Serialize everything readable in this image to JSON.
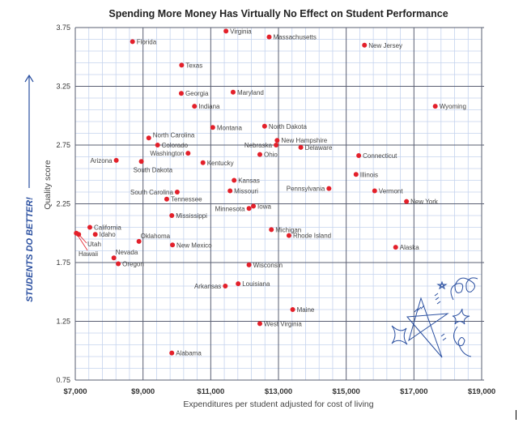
{
  "chart_data": {
    "type": "scatter",
    "title": "Spending More Money Has Virtually No Effect on Student Performance",
    "xlabel": "Expenditures per student adjusted for cost of living",
    "ylabel": "Quality score",
    "side_label": "STUDENTS DO BETTER!",
    "xlim": [
      7000,
      19000
    ],
    "ylim": [
      0.75,
      3.75
    ],
    "x_ticks": [
      7000,
      9000,
      11000,
      13000,
      15000,
      17000,
      19000
    ],
    "x_tick_labels": [
      "$7,000",
      "$9,000",
      "$11,000",
      "$13,000",
      "$15,000",
      "$17,000",
      "$19,000"
    ],
    "y_ticks": [
      0.75,
      1.25,
      1.75,
      2.25,
      2.75,
      3.25,
      3.75
    ],
    "y_tick_labels": [
      "0.75",
      "1.25",
      "1.75",
      "2.25",
      "2.75",
      "3.25",
      "3.75"
    ],
    "grid": true,
    "colors": {
      "point": "#e3202a",
      "grid_major": "#5a5f72",
      "grid_minor": "#c5d3ee",
      "accent": "#2a4fa0"
    },
    "points": [
      {
        "name": "Virginia",
        "x": 11450,
        "y": 3.72
      },
      {
        "name": "Massachusetts",
        "x": 12725,
        "y": 3.67
      },
      {
        "name": "Florida",
        "x": 8690,
        "y": 3.63
      },
      {
        "name": "New Jersey",
        "x": 15540,
        "y": 3.6
      },
      {
        "name": "Texas",
        "x": 10140,
        "y": 3.43
      },
      {
        "name": "Maryland",
        "x": 11660,
        "y": 3.2
      },
      {
        "name": "Georgia",
        "x": 10130,
        "y": 3.19
      },
      {
        "name": "Indiana",
        "x": 10520,
        "y": 3.08
      },
      {
        "name": "Wyoming",
        "x": 17630,
        "y": 3.08
      },
      {
        "name": "North Dakota",
        "x": 12590,
        "y": 2.91
      },
      {
        "name": "Montana",
        "x": 11060,
        "y": 2.9
      },
      {
        "name": "North Carolina",
        "x": 9170,
        "y": 2.81
      },
      {
        "name": "New Hampshire",
        "x": 12960,
        "y": 2.79
      },
      {
        "name": "Colorado",
        "x": 9430,
        "y": 2.75
      },
      {
        "name": "Nebraska",
        "x": 12930,
        "y": 2.75
      },
      {
        "name": "Delaware",
        "x": 13660,
        "y": 2.73
      },
      {
        "name": "Washington",
        "x": 10330,
        "y": 2.68
      },
      {
        "name": "Ohio",
        "x": 12450,
        "y": 2.67
      },
      {
        "name": "Connecticut",
        "x": 15370,
        "y": 2.66
      },
      {
        "name": "Arizona",
        "x": 8210,
        "y": 2.62
      },
      {
        "name": "South Dakota",
        "x": 8950,
        "y": 2.61
      },
      {
        "name": "Kentucky",
        "x": 10770,
        "y": 2.6
      },
      {
        "name": "Illinois",
        "x": 15290,
        "y": 2.5
      },
      {
        "name": "Kansas",
        "x": 11690,
        "y": 2.45
      },
      {
        "name": "Pennsylvania",
        "x": 14490,
        "y": 2.38
      },
      {
        "name": "Missouri",
        "x": 11570,
        "y": 2.36
      },
      {
        "name": "Vermont",
        "x": 15840,
        "y": 2.36
      },
      {
        "name": "South Carolina",
        "x": 10010,
        "y": 2.35
      },
      {
        "name": "Tennessee",
        "x": 9700,
        "y": 2.29
      },
      {
        "name": "New York",
        "x": 16780,
        "y": 2.27
      },
      {
        "name": "Iowa",
        "x": 12260,
        "y": 2.23
      },
      {
        "name": "Minnesota",
        "x": 12130,
        "y": 2.21
      },
      {
        "name": "Mississippi",
        "x": 9850,
        "y": 2.15
      },
      {
        "name": "California",
        "x": 7430,
        "y": 2.05
      },
      {
        "name": "Michigan",
        "x": 12790,
        "y": 2.03
      },
      {
        "name": "Utah",
        "x": 7100,
        "y": 1.99
      },
      {
        "name": "Hawaii",
        "x": 7030,
        "y": 2.0
      },
      {
        "name": "Idaho",
        "x": 7590,
        "y": 1.99
      },
      {
        "name": "Rhode Island",
        "x": 13310,
        "y": 1.98
      },
      {
        "name": "Oklahoma",
        "x": 8880,
        "y": 1.93
      },
      {
        "name": "New Mexico",
        "x": 9870,
        "y": 1.9
      },
      {
        "name": "Alaska",
        "x": 16460,
        "y": 1.88
      },
      {
        "name": "Nevada",
        "x": 8140,
        "y": 1.79
      },
      {
        "name": "Oregon",
        "x": 8270,
        "y": 1.74
      },
      {
        "name": "Wisconsin",
        "x": 12130,
        "y": 1.73
      },
      {
        "name": "Louisiana",
        "x": 11810,
        "y": 1.57
      },
      {
        "name": "Arkansas",
        "x": 11430,
        "y": 1.55
      },
      {
        "name": "Maine",
        "x": 13420,
        "y": 1.35
      },
      {
        "name": "West Virginia",
        "x": 12450,
        "y": 1.23
      },
      {
        "name": "Alabama",
        "x": 9850,
        "y": 0.98
      }
    ]
  }
}
